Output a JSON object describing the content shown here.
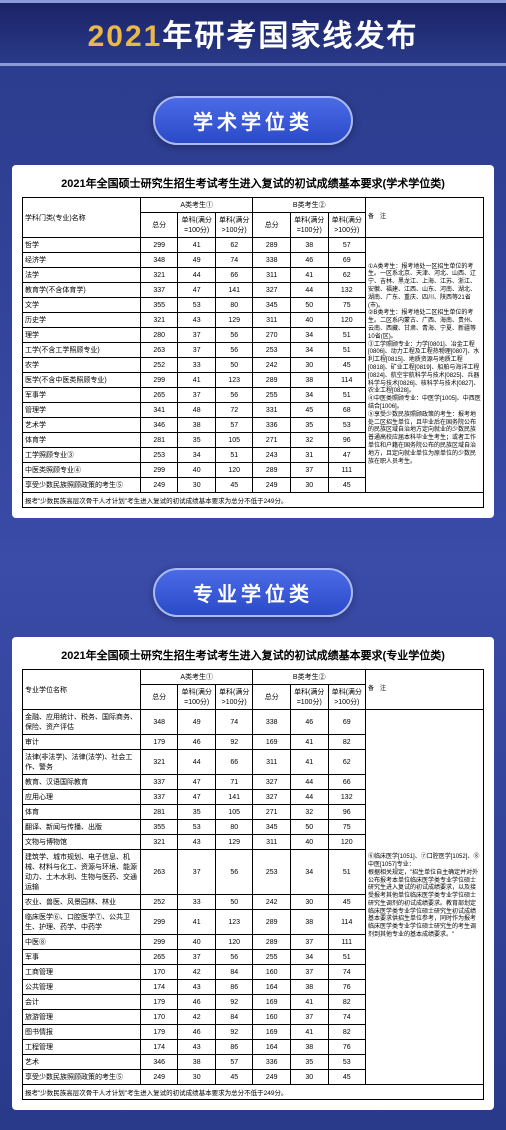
{
  "header": {
    "year": "2021",
    "title": "年研考国家线发布"
  },
  "section1": {
    "pill": "学术学位类",
    "tableTitle": "2021年全国硕士研究生招生考试考生进入复试的初试成绩基本要求(学术学位类)",
    "headers": {
      "name": "学科门类(专业)名称",
      "groupA": "A类考生①",
      "groupB": "B类考生②",
      "total": "总分",
      "single100": "单科(满分=100分)",
      "single100p": "单科(满分>100分)",
      "note": "备　注"
    },
    "rows": [
      {
        "name": "哲学",
        "a": [
          299,
          41,
          62
        ],
        "b": [
          289,
          38,
          57
        ]
      },
      {
        "name": "经济学",
        "a": [
          348,
          49,
          74
        ],
        "b": [
          338,
          46,
          69
        ]
      },
      {
        "name": "法学",
        "a": [
          321,
          44,
          66
        ],
        "b": [
          311,
          41,
          62
        ]
      },
      {
        "name": "教育学(不含体育学)",
        "a": [
          337,
          47,
          141
        ],
        "b": [
          327,
          44,
          132
        ]
      },
      {
        "name": "文学",
        "a": [
          355,
          53,
          80
        ],
        "b": [
          345,
          50,
          75
        ]
      },
      {
        "name": "历史学",
        "a": [
          321,
          43,
          129
        ],
        "b": [
          311,
          40,
          120
        ]
      },
      {
        "name": "理学",
        "a": [
          280,
          37,
          56
        ],
        "b": [
          270,
          34,
          51
        ]
      },
      {
        "name": "工学(不含工学照顾专业)",
        "a": [
          263,
          37,
          56
        ],
        "b": [
          253,
          34,
          51
        ]
      },
      {
        "name": "农学",
        "a": [
          252,
          33,
          50
        ],
        "b": [
          242,
          30,
          45
        ]
      },
      {
        "name": "医学(不含中医类照顾专业)",
        "a": [
          299,
          41,
          123
        ],
        "b": [
          289,
          38,
          114
        ]
      },
      {
        "name": "军事学",
        "a": [
          265,
          37,
          56
        ],
        "b": [
          255,
          34,
          51
        ]
      },
      {
        "name": "管理学",
        "a": [
          341,
          48,
          72
        ],
        "b": [
          331,
          45,
          68
        ]
      },
      {
        "name": "艺术学",
        "a": [
          346,
          38,
          57
        ],
        "b": [
          336,
          35,
          53
        ]
      },
      {
        "name": "体育学",
        "a": [
          281,
          35,
          105
        ],
        "b": [
          271,
          32,
          96
        ]
      },
      {
        "name": "工学照顾专业③",
        "a": [
          253,
          34,
          51
        ],
        "b": [
          243,
          31,
          47
        ]
      },
      {
        "name": "中医类照顾专业④",
        "a": [
          299,
          40,
          120
        ],
        "b": [
          289,
          37,
          111
        ]
      },
      {
        "name": "享受少数民族照顾政策的考生⑤",
        "a": [
          249,
          30,
          45
        ],
        "b": [
          249,
          30,
          45
        ]
      }
    ],
    "notes": "①A类考生：报考地处一区招生单位的考生。一区系北京、天津、河北、山西、辽宁、吉林、黑龙江、上海、江苏、浙江、安徽、福建、江西、山东、河南、湖北、湖南、广东、重庆、四川、陕西等21省(市)。\n②B类考生：报考地处二区招生单位的考生。二区系内蒙古、广西、海南、贵州、云南、西藏、甘肃、青海、宁夏、新疆等10省(区)。\n③工学照顾专业：力学[0801]、冶金工程[0806]、动力工程及工程热物理[0807]、水利工程[0815]、地质资源与地质工程[0818]、矿业工程[0819]、船舶与海洋工程[0824]、航空宇航科学与技术[0825]、兵器科学与技术[0826]、核科学与技术[0827]、农业工程[0828]。\n④中医类照顾专业：中医学[1005]、中西医结合[1006]。\n⑤享受少数民族照顾政策的考生：报考地处二区招生单位，且毕业后在国务院公布的民族区域自治地方定向就业的少数民族普通高校应届本科毕业生考生；或者工作单位和户籍在国务院公布的民族区域自治地方，且定向就业单位为原单位的少数民族在职人员考生。",
    "footnote": "报考\"少数民族高层次骨干人才计划\"考生进入复试的初试成绩基本要求为总分不低于249分。"
  },
  "section2": {
    "pill": "专业学位类",
    "tableTitle": "2021年全国硕士研究生招生考试考生进入复试的初试成绩基本要求(专业学位类)",
    "headers": {
      "name": "专业学位名称",
      "groupA": "A类考生①",
      "groupB": "B类考生②",
      "total": "总分",
      "single100": "单科(满分=100分)",
      "single100p": "单科(满分>100分)",
      "note": "备　注"
    },
    "rows": [
      {
        "name": "金融、应用统计、税务、国际商务、保险、资产评估",
        "a": [
          348,
          49,
          74
        ],
        "b": [
          338,
          46,
          69
        ]
      },
      {
        "name": "审计",
        "a": [
          179,
          46,
          92
        ],
        "b": [
          169,
          41,
          82
        ]
      },
      {
        "name": "法律(非法学)、法律(法学)、社会工作、警务",
        "a": [
          321,
          44,
          66
        ],
        "b": [
          311,
          41,
          62
        ]
      },
      {
        "name": "教育、汉语国际教育",
        "a": [
          337,
          47,
          71
        ],
        "b": [
          327,
          44,
          66
        ]
      },
      {
        "name": "应用心理",
        "a": [
          337,
          47,
          141
        ],
        "b": [
          327,
          44,
          132
        ]
      },
      {
        "name": "体育",
        "a": [
          281,
          35,
          105
        ],
        "b": [
          271,
          32,
          96
        ]
      },
      {
        "name": "翻译、新闻与传播、出版",
        "a": [
          355,
          53,
          80
        ],
        "b": [
          345,
          50,
          75
        ]
      },
      {
        "name": "文物与博物馆",
        "a": [
          321,
          43,
          129
        ],
        "b": [
          311,
          40,
          120
        ]
      },
      {
        "name": "建筑学、城市规划、电子信息、机械、材料与化工、资源与环境、能源动力、土木水利、生物与医药、交通运输",
        "a": [
          263,
          37,
          56
        ],
        "b": [
          253,
          34,
          51
        ]
      },
      {
        "name": "农业、兽医、风景园林、林业",
        "a": [
          252,
          33,
          50
        ],
        "b": [
          242,
          30,
          45
        ]
      },
      {
        "name": "临床医学⑥、口腔医学⑦、公共卫生、护理、药学、中药学",
        "a": [
          299,
          41,
          123
        ],
        "b": [
          289,
          38,
          114
        ]
      },
      {
        "name": "中医⑧",
        "a": [
          299,
          40,
          120
        ],
        "b": [
          289,
          37,
          111
        ]
      },
      {
        "name": "军事",
        "a": [
          265,
          37,
          56
        ],
        "b": [
          255,
          34,
          51
        ]
      },
      {
        "name": "工商管理",
        "a": [
          170,
          42,
          84
        ],
        "b": [
          160,
          37,
          74
        ]
      },
      {
        "name": "公共管理",
        "a": [
          174,
          43,
          86
        ],
        "b": [
          164,
          38,
          76
        ]
      },
      {
        "name": "会计",
        "a": [
          179,
          46,
          92
        ],
        "b": [
          169,
          41,
          82
        ]
      },
      {
        "name": "旅游管理",
        "a": [
          170,
          42,
          84
        ],
        "b": [
          160,
          37,
          74
        ]
      },
      {
        "name": "图书情报",
        "a": [
          179,
          46,
          92
        ],
        "b": [
          169,
          41,
          82
        ]
      },
      {
        "name": "工程管理",
        "a": [
          174,
          43,
          86
        ],
        "b": [
          164,
          38,
          76
        ]
      },
      {
        "name": "艺术",
        "a": [
          346,
          38,
          57
        ],
        "b": [
          336,
          35,
          53
        ]
      },
      {
        "name": "享受少数民族照顾政策的考生⑤",
        "a": [
          249,
          30,
          45
        ],
        "b": [
          249,
          30,
          45
        ]
      }
    ],
    "notes": "⑥临床医学[1051]、⑦口腔医学[1052]、⑧中医[1057]专业：\n根据相关规定，\"招生单位自主确定并对外公布报考本单位临床医学类专业学位硕士研究生进入复试的初试成绩要求，以及接受报考其他单位临床医学类专业学位硕士研究生调剂的初试成绩要求。教育部划定临床医学类专业学位硕士研究生初试成绩基本要求供招生单位参考，同时作为报考临床医学类专业学位硕士研究生的考生调剂到其他专业的基本成绩要求。\"",
    "footnote": "报考\"少数民族高层次骨干人才计划\"考生进入复试的初试成绩基本要求为总分不低于249分。"
  }
}
